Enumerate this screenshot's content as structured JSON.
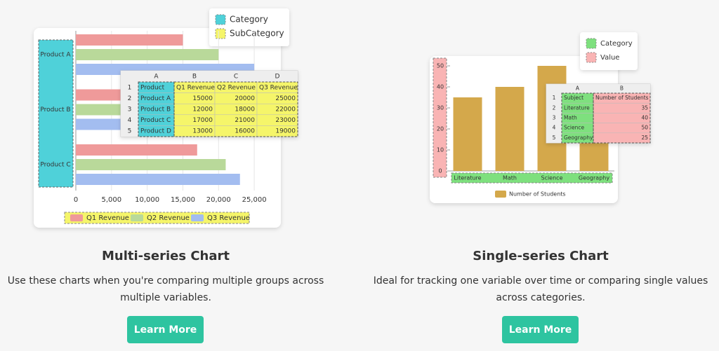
{
  "cards": [
    {
      "title": "Multi-series Chart",
      "description": "Use these charts when you're comparing multiple groups across multiple variables.",
      "button": "Learn More",
      "tags": [
        {
          "label": "Category",
          "color": "#4fd1d9"
        },
        {
          "label": "SubCategory",
          "color": "#f5f56a"
        }
      ],
      "chart": {
        "type": "hbar",
        "categories": [
          "Product A",
          "Product B",
          "Product C"
        ],
        "series": [
          {
            "name": "Q1 Revenue",
            "color": "#ef9a9a",
            "values": [
              15000,
              12000,
              17000
            ]
          },
          {
            "name": "Q2 Revenue",
            "color": "#b9d99a",
            "values": [
              20000,
              18000,
              21000
            ]
          },
          {
            "name": "Q3 Revenue",
            "color": "#a3bdf0",
            "values": [
              25000,
              22000,
              23000
            ]
          }
        ],
        "xlim": [
          0,
          27500
        ],
        "xticks": [
          0,
          {
            "value": 5000,
            "label": "5,000"
          },
          {
            "value": 10000,
            "label": "10,000"
          },
          {
            "value": 15000,
            "label": "15,000"
          },
          {
            "value": 20000,
            "label": "20,000"
          },
          {
            "value": 25000,
            "label": "25,000"
          }
        ],
        "grid": true
      },
      "sheet": {
        "columns": [
          "A",
          "B",
          "C",
          "D"
        ],
        "row_numbers": [
          1,
          2,
          3,
          4,
          5
        ],
        "rows": [
          [
            "Product",
            "Q1 Revenue",
            "Q2 Revenue",
            "Q3 Revenue"
          ],
          [
            "Product A",
            15000,
            20000,
            25000
          ],
          [
            "Product B",
            12000,
            18000,
            22000
          ],
          [
            "Product C",
            17000,
            21000,
            23000
          ],
          [
            "Product D",
            13000,
            16000,
            19000
          ]
        ]
      }
    },
    {
      "title": "Single-series Chart",
      "description": "Ideal for tracking one variable over time or comparing single values across categories.",
      "button": "Learn More",
      "tags": [
        {
          "label": "Category",
          "color": "#7ee07e"
        },
        {
          "label": "Value",
          "color": "#f9b4b4"
        }
      ],
      "chart": {
        "type": "bar",
        "categories": [
          "Literature",
          "Math",
          "Science",
          "Geography"
        ],
        "series": [
          {
            "name": "Number of Students",
            "color": "#d4a84b",
            "values": [
              35,
              40,
              50,
              25
            ]
          }
        ],
        "ylim": [
          0,
          50
        ],
        "yticks": [
          0,
          10,
          20,
          30,
          40,
          50
        ]
      },
      "sheet": {
        "columns": [
          "A",
          "B"
        ],
        "row_numbers": [
          1,
          2,
          3,
          4,
          5
        ],
        "rows": [
          [
            "Subject",
            "Number of Students"
          ],
          [
            "Literature",
            35
          ],
          [
            "Math",
            40
          ],
          [
            "Science",
            50
          ],
          [
            "Geography",
            25
          ]
        ]
      }
    }
  ]
}
